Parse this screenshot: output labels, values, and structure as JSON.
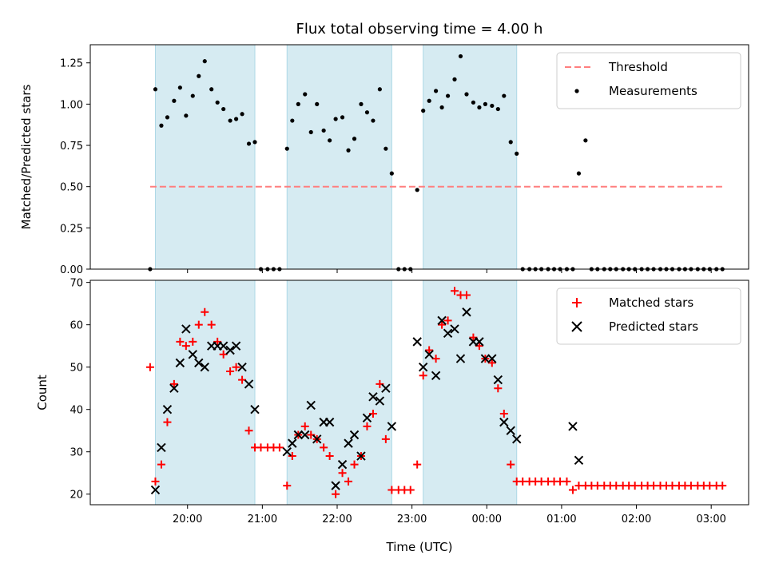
{
  "chart_data": {
    "title": "Flux total observing time = 4.00 h",
    "xlabel": "Time (UTC)",
    "x_unit": "hours (19.0 = 19:00; 26.0 = 02:00 next day)",
    "xlim": [
      18.7,
      27.5
    ],
    "xticks": [
      {
        "value": 20,
        "label": "20:00"
      },
      {
        "value": 21,
        "label": "21:00"
      },
      {
        "value": 22,
        "label": "22:00"
      },
      {
        "value": 23,
        "label": "23:00"
      },
      {
        "value": 24,
        "label": "00:00"
      },
      {
        "value": 25,
        "label": "01:00"
      },
      {
        "value": 26,
        "label": "02:00"
      },
      {
        "value": 27,
        "label": "03:00"
      }
    ],
    "shaded_intervals": [
      [
        19.57,
        20.9
      ],
      [
        21.33,
        22.73
      ],
      [
        23.15,
        24.4
      ]
    ],
    "shade_color": "#add8e6",
    "panels": [
      {
        "name": "ratio",
        "type": "scatter",
        "ylabel": "Matched/Predicted stars",
        "ylim": [
          0,
          1.36
        ],
        "yticks": [
          "0.00",
          "0.25",
          "0.50",
          "0.75",
          "1.00",
          "1.25"
        ],
        "ytick_values": [
          0,
          0.25,
          0.5,
          0.75,
          1.0,
          1.25
        ],
        "threshold": {
          "name": "Threshold",
          "value": 0.5,
          "x_range": [
            19.5,
            27.17
          ],
          "color": "#ff7f7f"
        },
        "series": [
          {
            "name": "Measurements",
            "color": "#000000",
            "x": [
              19.5,
              19.57,
              19.65,
              19.73,
              19.82,
              19.9,
              19.98,
              20.07,
              20.15,
              20.23,
              20.32,
              20.4,
              20.48,
              20.57,
              20.65,
              20.73,
              20.82,
              20.9,
              20.98,
              21.07,
              21.15,
              21.23,
              21.33,
              21.4,
              21.48,
              21.57,
              21.65,
              21.73,
              21.82,
              21.9,
              21.98,
              22.07,
              22.15,
              22.23,
              22.32,
              22.4,
              22.48,
              22.57,
              22.65,
              22.73,
              22.82,
              22.9,
              22.98,
              23.07,
              23.15,
              23.23,
              23.32,
              23.4,
              23.48,
              23.57,
              23.65,
              23.73,
              23.82,
              23.9,
              23.98,
              24.07,
              24.15,
              24.23,
              24.32,
              24.4,
              24.48,
              24.57,
              24.65,
              24.73,
              24.82,
              24.9,
              24.98,
              25.07,
              25.15,
              25.23,
              25.32,
              25.4,
              25.48,
              25.57,
              25.65,
              25.73,
              25.82,
              25.9,
              25.98,
              26.07,
              26.15,
              26.23,
              26.32,
              26.4,
              26.48,
              26.57,
              26.65,
              26.73,
              26.82,
              26.9,
              26.98,
              27.07,
              27.15
            ],
            "y": [
              0.0,
              1.09,
              0.87,
              0.92,
              1.02,
              1.1,
              0.93,
              1.05,
              1.17,
              1.26,
              1.09,
              1.01,
              0.97,
              0.9,
              0.91,
              0.94,
              0.76,
              0.77,
              0.0,
              0.0,
              0.0,
              0.0,
              0.73,
              0.9,
              1.0,
              1.06,
              0.83,
              1.0,
              0.84,
              0.78,
              0.91,
              0.92,
              0.72,
              0.79,
              1.0,
              0.95,
              0.9,
              1.09,
              0.73,
              0.58,
              0.0,
              0.0,
              0.0,
              0.48,
              0.96,
              1.02,
              1.08,
              0.98,
              1.05,
              1.15,
              1.29,
              1.06,
              1.01,
              0.98,
              1.0,
              0.99,
              0.97,
              1.05,
              0.77,
              0.7,
              0.0,
              0.0,
              0.0,
              0.0,
              0.0,
              0.0,
              0.0,
              0.0,
              0.0,
              0.58,
              0.78,
              0.0,
              0.0,
              0.0,
              0.0,
              0.0,
              0.0,
              0.0,
              0.0,
              0.0,
              0.0,
              0.0,
              0.0,
              0.0,
              0.0,
              0.0,
              0.0,
              0.0,
              0.0,
              0.0,
              0.0,
              0.0,
              0.0
            ]
          }
        ],
        "legend": [
          "Threshold",
          "Measurements"
        ],
        "legend_placement": "upper right"
      },
      {
        "name": "counts",
        "type": "scatter",
        "ylabel": "Count",
        "ylim": [
          17.5,
          70.5
        ],
        "yticks": [
          "20",
          "30",
          "40",
          "50",
          "60",
          "70"
        ],
        "ytick_values": [
          20,
          30,
          40,
          50,
          60,
          70
        ],
        "series": [
          {
            "name": "Matched stars",
            "marker": "+",
            "color": "#ff0000",
            "x": [
              19.5,
              19.57,
              19.65,
              19.73,
              19.82,
              19.9,
              19.98,
              20.07,
              20.15,
              20.23,
              20.32,
              20.4,
              20.48,
              20.57,
              20.65,
              20.73,
              20.82,
              20.9,
              20.98,
              21.07,
              21.15,
              21.23,
              21.33,
              21.4,
              21.48,
              21.57,
              21.65,
              21.73,
              21.82,
              21.9,
              21.98,
              22.07,
              22.15,
              22.23,
              22.32,
              22.4,
              22.48,
              22.57,
              22.65,
              22.73,
              22.82,
              22.9,
              22.98,
              23.07,
              23.15,
              23.23,
              23.32,
              23.4,
              23.48,
              23.57,
              23.65,
              23.73,
              23.82,
              23.9,
              23.98,
              24.07,
              24.15,
              24.23,
              24.32,
              24.4,
              24.48,
              24.57,
              24.65,
              24.73,
              24.82,
              24.9,
              24.98,
              25.07,
              25.15,
              25.23,
              25.32,
              25.4,
              25.48,
              25.57,
              25.65,
              25.73,
              25.82,
              25.9,
              25.98,
              26.07,
              26.15,
              26.23,
              26.32,
              26.4,
              26.48,
              26.57,
              26.65,
              26.73,
              26.82,
              26.9,
              26.98,
              27.07,
              27.15
            ],
            "y": [
              50,
              23,
              27,
              37,
              46,
              56,
              55,
              56,
              60,
              63,
              60,
              56,
              53,
              49,
              50,
              47,
              35,
              31,
              31,
              31,
              31,
              31,
              22,
              29,
              34,
              36,
              34,
              33,
              31,
              29,
              20,
              25,
              23,
              27,
              29,
              36,
              39,
              46,
              33,
              21,
              21,
              21,
              21,
              27,
              48,
              54,
              52,
              60,
              61,
              68,
              67,
              67,
              57,
              55,
              52,
              51,
              45,
              39,
              27,
              23,
              23,
              23,
              23,
              23,
              23,
              23,
              23,
              23,
              21,
              22,
              22,
              22,
              22,
              22,
              22,
              22,
              22,
              22,
              22,
              22,
              22,
              22,
              22,
              22,
              22,
              22,
              22,
              22,
              22,
              22,
              22,
              22,
              22
            ]
          },
          {
            "name": "Predicted stars",
            "marker": "x",
            "color": "#000000",
            "x": [
              19.57,
              19.65,
              19.73,
              19.82,
              19.9,
              19.98,
              20.07,
              20.15,
              20.23,
              20.32,
              20.4,
              20.48,
              20.57,
              20.65,
              20.73,
              20.82,
              20.9,
              21.33,
              21.4,
              21.48,
              21.57,
              21.65,
              21.73,
              21.82,
              21.9,
              21.98,
              22.07,
              22.15,
              22.23,
              22.32,
              22.4,
              22.48,
              22.57,
              22.65,
              22.73,
              23.07,
              23.15,
              23.23,
              23.32,
              23.4,
              23.48,
              23.57,
              23.65,
              23.73,
              23.82,
              23.9,
              23.98,
              24.07,
              24.15,
              24.23,
              24.32,
              24.4,
              25.15,
              25.23
            ],
            "y": [
              21,
              31,
              40,
              45,
              51,
              59,
              53,
              51,
              50,
              55,
              55,
              55,
              54,
              55,
              50,
              46,
              40,
              30,
              32,
              34,
              34,
              41,
              33,
              37,
              37,
              22,
              27,
              32,
              34,
              29,
              38,
              43,
              42,
              45,
              36,
              56,
              50,
              53,
              48,
              61,
              58,
              59,
              52,
              63,
              56,
              56,
              52,
              52,
              47,
              37,
              35,
              33,
              36,
              28
            ]
          }
        ],
        "legend": [
          "Matched stars",
          "Predicted stars"
        ],
        "legend_placement": "upper right"
      }
    ]
  }
}
